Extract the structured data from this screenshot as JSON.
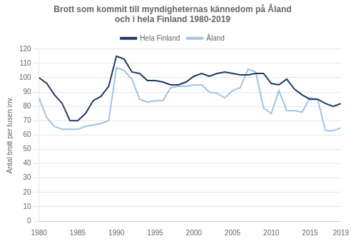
{
  "chart_data": {
    "type": "line",
    "title": [
      "Brott som kommit till myndigheternas kännedom på Åland",
      "och i hela Finland 1980-2019"
    ],
    "y_label": "Antal brott per tusen inv.",
    "x": [
      1980,
      1981,
      1982,
      1983,
      1984,
      1985,
      1986,
      1987,
      1988,
      1989,
      1990,
      1991,
      1992,
      1993,
      1994,
      1995,
      1996,
      1997,
      1998,
      1999,
      2000,
      2001,
      2002,
      2003,
      2004,
      2005,
      2006,
      2007,
      2008,
      2009,
      2010,
      2011,
      2012,
      2013,
      2014,
      2015,
      2016,
      2017,
      2018,
      2019
    ],
    "series": [
      {
        "name": "Hela Finland",
        "color": "#1f3864",
        "values": [
          100,
          96,
          88,
          82,
          70,
          70,
          75,
          84,
          87,
          94,
          115,
          113,
          104,
          103,
          98,
          98,
          97,
          95,
          95,
          97,
          101,
          103,
          101,
          103,
          104,
          103,
          102,
          102,
          103,
          103,
          96,
          95,
          99,
          92,
          88,
          85,
          85,
          82,
          80,
          82
        ]
      },
      {
        "name": "Åland",
        "color": "#9dc3e6",
        "values": [
          86,
          72,
          66,
          64,
          64,
          64,
          66,
          67,
          68,
          70,
          107,
          105,
          99,
          85,
          83,
          84,
          84,
          93,
          94,
          94,
          95,
          95,
          90,
          89,
          86,
          91,
          93,
          106,
          104,
          79,
          75,
          91,
          77,
          77,
          76,
          86,
          85,
          63,
          63,
          65
        ]
      }
    ],
    "xlim": [
      1980,
      2019
    ],
    "xticks": [
      1980,
      1985,
      1990,
      1995,
      2000,
      2005,
      2010,
      2015,
      2019
    ],
    "ylim": [
      0,
      120
    ],
    "yticks": [
      0,
      10,
      20,
      30,
      40,
      50,
      60,
      70,
      80,
      90,
      100,
      110,
      120
    ],
    "grid": true
  }
}
